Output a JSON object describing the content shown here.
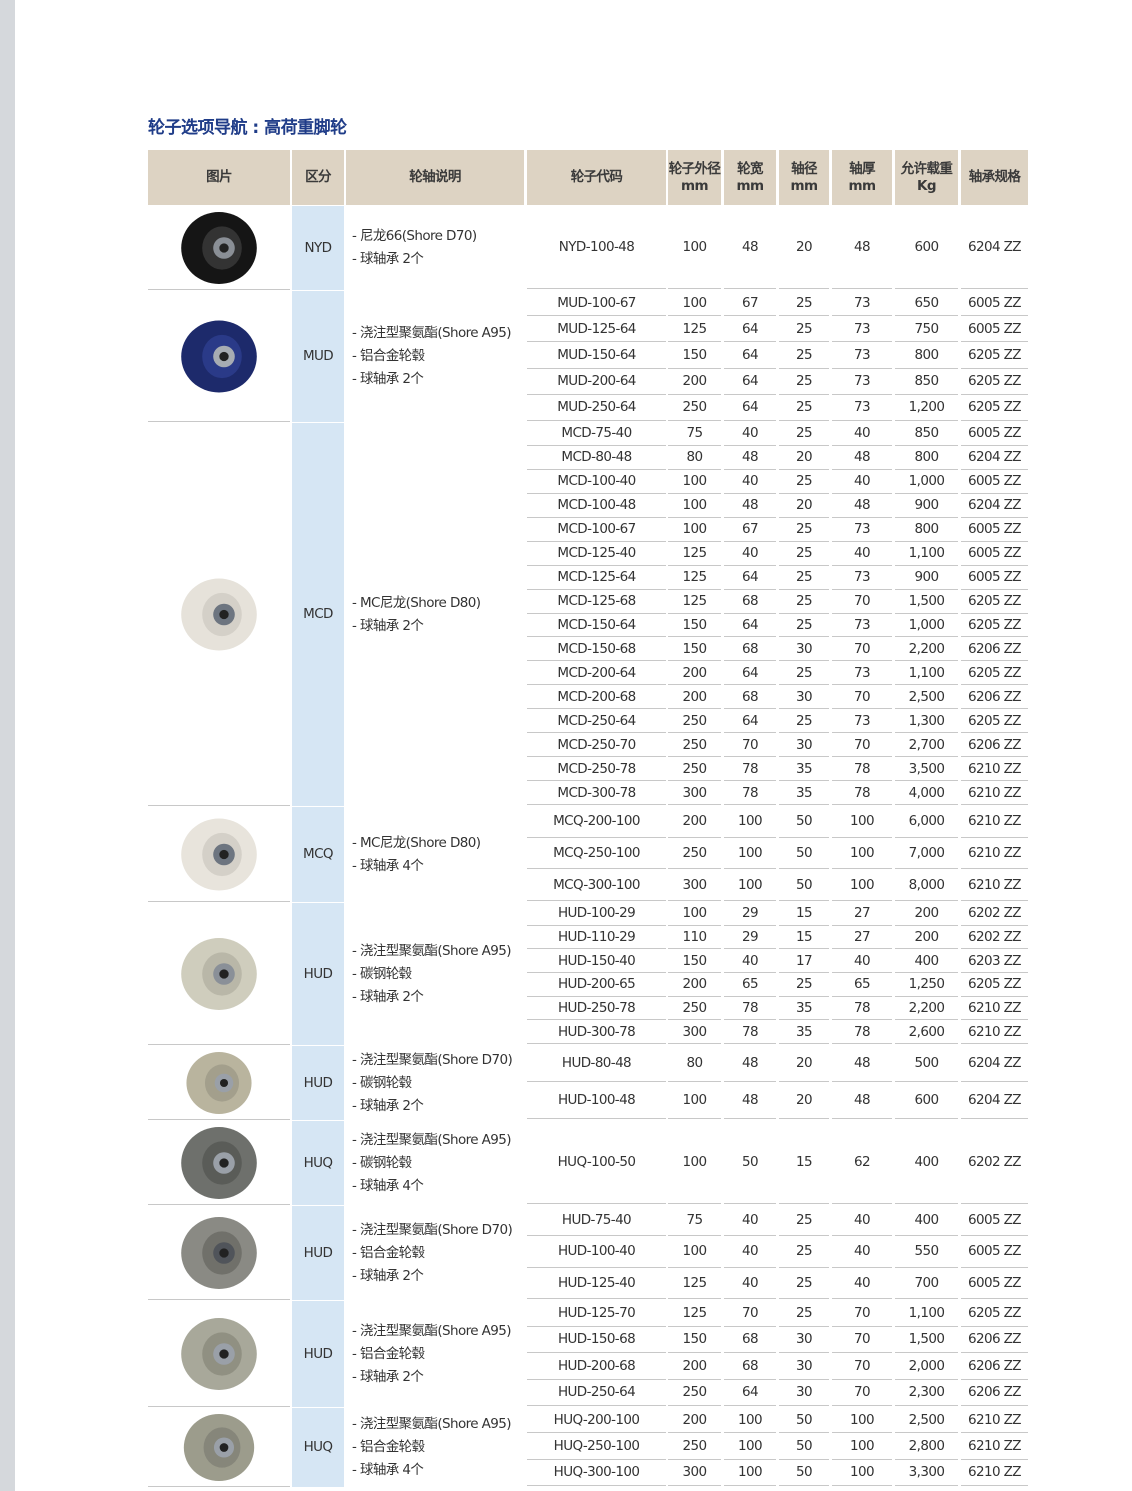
{
  "header": {
    "title": "轮子选项导航 : 高荷重脚轮"
  },
  "table": {
    "columns": [
      [
        "图片"
      ],
      [
        "区分"
      ],
      [
        "轮轴说明"
      ],
      [
        "轮子代码"
      ],
      [
        "轮子外径",
        "mm"
      ],
      [
        "轮宽",
        "mm"
      ],
      [
        "轴径",
        "mm"
      ],
      [
        "轴厚",
        "mm"
      ],
      [
        "允许载重",
        "Kg"
      ],
      [
        "轴承规格"
      ]
    ],
    "groups": [
      {
        "kind": "NYD",
        "desc": [
          "- 尼龙66(Shore D70)",
          "- 球轴承 2个"
        ],
        "rows": [
          [
            "NYD-100-48",
            "100",
            "48",
            "20",
            "48",
            "600",
            "6204 ZZ"
          ]
        ]
      },
      {
        "kind": "MUD",
        "desc": [
          "- 浇注型聚氨酯(Shore A95)",
          "- 铝合金轮毂",
          "- 球轴承 2个"
        ],
        "rows": [
          [
            "MUD-100-67",
            "100",
            "67",
            "25",
            "73",
            "650",
            "6005 ZZ"
          ],
          [
            "MUD-125-64",
            "125",
            "64",
            "25",
            "73",
            "750",
            "6005 ZZ"
          ],
          [
            "MUD-150-64",
            "150",
            "64",
            "25",
            "73",
            "800",
            "6205 ZZ"
          ],
          [
            "MUD-200-64",
            "200",
            "64",
            "25",
            "73",
            "850",
            "6205 ZZ"
          ],
          [
            "MUD-250-64",
            "250",
            "64",
            "25",
            "73",
            "1,200",
            "6205 ZZ"
          ]
        ]
      },
      {
        "kind": "MCD",
        "desc": [
          "- MC尼龙(Shore D80)",
          "- 球轴承 2个"
        ],
        "rows": [
          [
            "MCD-75-40",
            "75",
            "40",
            "25",
            "40",
            "850",
            "6005 ZZ"
          ],
          [
            "MCD-80-48",
            "80",
            "48",
            "20",
            "48",
            "800",
            "6204 ZZ"
          ],
          [
            "MCD-100-40",
            "100",
            "40",
            "25",
            "40",
            "1,000",
            "6005 ZZ"
          ],
          [
            "MCD-100-48",
            "100",
            "48",
            "20",
            "48",
            "900",
            "6204 ZZ"
          ],
          [
            "MCD-100-67",
            "100",
            "67",
            "25",
            "73",
            "800",
            "6005 ZZ"
          ],
          [
            "MCD-125-40",
            "125",
            "40",
            "25",
            "40",
            "1,100",
            "6005 ZZ"
          ],
          [
            "MCD-125-64",
            "125",
            "64",
            "25",
            "73",
            "900",
            "6005 ZZ"
          ],
          [
            "MCD-125-68",
            "125",
            "68",
            "25",
            "70",
            "1,500",
            "6205 ZZ"
          ],
          [
            "MCD-150-64",
            "150",
            "64",
            "25",
            "73",
            "1,000",
            "6205 ZZ"
          ],
          [
            "MCD-150-68",
            "150",
            "68",
            "30",
            "70",
            "2,200",
            "6206 ZZ"
          ],
          [
            "MCD-200-64",
            "200",
            "64",
            "25",
            "73",
            "1,100",
            "6205 ZZ"
          ],
          [
            "MCD-200-68",
            "200",
            "68",
            "30",
            "70",
            "2,500",
            "6206 ZZ"
          ],
          [
            "MCD-250-64",
            "250",
            "64",
            "25",
            "73",
            "1,300",
            "6205 ZZ"
          ],
          [
            "MCD-250-70",
            "250",
            "70",
            "30",
            "70",
            "2,700",
            "6206 ZZ"
          ],
          [
            "MCD-250-78",
            "250",
            "78",
            "35",
            "78",
            "3,500",
            "6210 ZZ"
          ],
          [
            "MCD-300-78",
            "300",
            "78",
            "35",
            "78",
            "4,000",
            "6210 ZZ"
          ]
        ]
      },
      {
        "kind": "MCQ",
        "desc": [
          "- MC尼龙(Shore D80)",
          "- 球轴承 4个"
        ],
        "rows": [
          [
            "MCQ-200-100",
            "200",
            "100",
            "50",
            "100",
            "6,000",
            "6210 ZZ"
          ],
          [
            "MCQ-250-100",
            "250",
            "100",
            "50",
            "100",
            "7,000",
            "6210 ZZ"
          ],
          [
            "MCQ-300-100",
            "300",
            "100",
            "50",
            "100",
            "8,000",
            "6210 ZZ"
          ]
        ]
      },
      {
        "kind": "HUD",
        "desc": [
          "- 浇注型聚氨酯(Shore A95)",
          "- 碳钢轮毂",
          "- 球轴承 2个"
        ],
        "rows": [
          [
            "HUD-100-29",
            "100",
            "29",
            "15",
            "27",
            "200",
            "6202 ZZ"
          ],
          [
            "HUD-110-29",
            "110",
            "29",
            "15",
            "27",
            "200",
            "6202 ZZ"
          ],
          [
            "HUD-150-40",
            "150",
            "40",
            "17",
            "40",
            "400",
            "6203 ZZ"
          ],
          [
            "HUD-200-65",
            "200",
            "65",
            "25",
            "65",
            "1,250",
            "6205 ZZ"
          ],
          [
            "HUD-250-78",
            "250",
            "78",
            "35",
            "78",
            "2,200",
            "6210 ZZ"
          ],
          [
            "HUD-300-78",
            "300",
            "78",
            "35",
            "78",
            "2,600",
            "6210 ZZ"
          ]
        ]
      },
      {
        "kind": "HUD",
        "desc": [
          "- 浇注型聚氨酯(Shore D70)",
          "- 碳钢轮毂",
          "- 球轴承 2个"
        ],
        "rows": [
          [
            "HUD-80-48",
            "80",
            "48",
            "20",
            "48",
            "500",
            "6204 ZZ"
          ],
          [
            "HUD-100-48",
            "100",
            "48",
            "20",
            "48",
            "600",
            "6204 ZZ"
          ]
        ]
      },
      {
        "kind": "HUQ",
        "desc": [
          "- 浇注型聚氨酯(Shore A95)",
          "- 碳钢轮毂",
          "- 球轴承 4个"
        ],
        "rows": [
          [
            "HUQ-100-50",
            "100",
            "50",
            "15",
            "62",
            "400",
            "6202 ZZ"
          ]
        ]
      },
      {
        "kind": "HUD",
        "desc": [
          "- 浇注型聚氨酯(Shore D70)",
          "- 铝合金轮毂",
          "- 球轴承 2个"
        ],
        "rows": [
          [
            "HUD-75-40",
            "75",
            "40",
            "25",
            "40",
            "400",
            "6005 ZZ"
          ],
          [
            "HUD-100-40",
            "100",
            "40",
            "25",
            "40",
            "550",
            "6005 ZZ"
          ],
          [
            "HUD-125-40",
            "125",
            "40",
            "25",
            "40",
            "700",
            "6005 ZZ"
          ]
        ]
      },
      {
        "kind": "HUD",
        "desc": [
          "- 浇注型聚氨酯(Shore A95)",
          "- 铝合金轮毂",
          "- 球轴承 2个"
        ],
        "rows": [
          [
            "HUD-125-70",
            "125",
            "70",
            "25",
            "70",
            "1,100",
            "6205 ZZ"
          ],
          [
            "HUD-150-68",
            "150",
            "68",
            "30",
            "70",
            "1,500",
            "6206 ZZ"
          ],
          [
            "HUD-200-68",
            "200",
            "68",
            "30",
            "70",
            "2,000",
            "6206 ZZ"
          ],
          [
            "HUD-250-64",
            "250",
            "64",
            "30",
            "70",
            "2,300",
            "6206 ZZ"
          ]
        ]
      },
      {
        "kind": "HUQ",
        "desc": [
          "- 浇注型聚氨酯(Shore A95)",
          "- 铝合金轮毂",
          "- 球轴承 4个"
        ],
        "rows": [
          [
            "HUQ-200-100",
            "200",
            "100",
            "50",
            "100",
            "2,500",
            "6210 ZZ"
          ],
          [
            "HUQ-250-100",
            "250",
            "100",
            "50",
            "100",
            "2,800",
            "6210 ZZ"
          ],
          [
            "HUQ-300-100",
            "300",
            "100",
            "50",
            "100",
            "3,300",
            "6210 ZZ"
          ]
        ]
      }
    ]
  }
}
